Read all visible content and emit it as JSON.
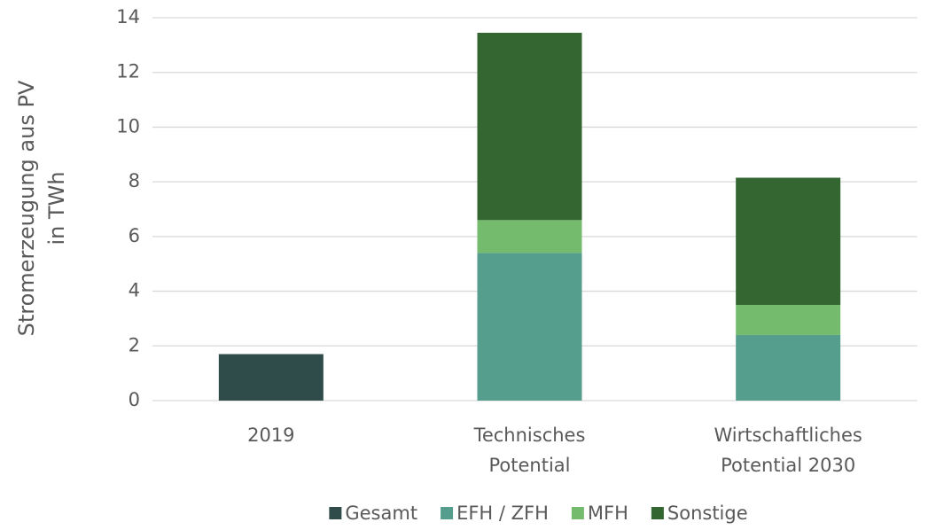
{
  "chart_data": {
    "type": "stacked_bar",
    "y_label": "Stromerzeugung aus PV in TWh",
    "categories": [
      "2019",
      "Technisches Potential",
      "Wirtschaftliches Potential 2030"
    ],
    "series": [
      {
        "name": "Gesamt",
        "color": "#2f4b4a",
        "values": [
          1.7,
          null,
          null
        ]
      },
      {
        "name": "EFH / ZFH",
        "color": "#559e8e",
        "values": [
          null,
          5.4,
          2.4
        ]
      },
      {
        "name": "MFH",
        "color": "#74bb6e",
        "values": [
          null,
          1.2,
          1.1
        ]
      },
      {
        "name": "Sonstige",
        "color": "#336631",
        "values": [
          null,
          6.85,
          4.65
        ]
      }
    ],
    "ylim": [
      0,
      14
    ],
    "yticks": [
      0,
      2,
      4,
      6,
      8,
      10,
      12,
      14
    ],
    "grid": true,
    "legend": "bottom"
  }
}
